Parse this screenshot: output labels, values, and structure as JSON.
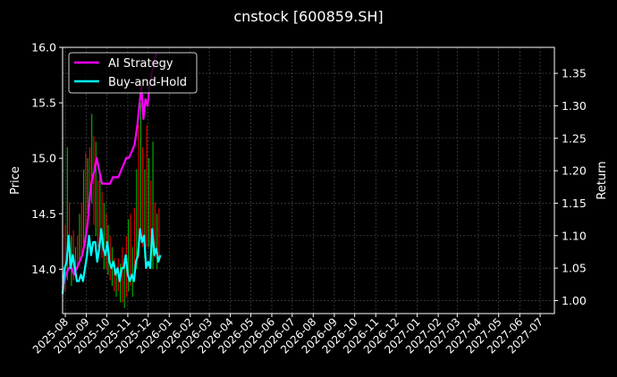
{
  "chart_data": {
    "type": "line",
    "title": "cnstock [600859.SH]",
    "ylabel_left": "Price",
    "ylabel_right": "Return",
    "xlim": [
      "2025-07-28",
      "2027-07-22"
    ],
    "ylim_left": [
      13.6,
      16.0
    ],
    "ylim_right": [
      0.98,
      1.39
    ],
    "yticks_left": [
      "14.0",
      "14.5",
      "15.0",
      "15.5",
      "16.0"
    ],
    "yticks_left_values": [
      14.0,
      14.5,
      15.0,
      15.5,
      16.0
    ],
    "yticks_right": [
      "1.00",
      "1.05",
      "1.10",
      "1.15",
      "1.20",
      "1.25",
      "1.30",
      "1.35"
    ],
    "yticks_right_values": [
      1.0,
      1.05,
      1.1,
      1.15,
      1.2,
      1.25,
      1.3,
      1.35
    ],
    "xticks": [
      "2025-08",
      "2025-09",
      "2025-10",
      "2025-11",
      "2025-12",
      "2026-01",
      "2026-02",
      "2026-03",
      "2026-04",
      "2026-05",
      "2026-06",
      "2026-07",
      "2026-08",
      "2026-09",
      "2026-10",
      "2026-11",
      "2026-12",
      "2027-01",
      "2027-02",
      "2027-03",
      "2027-04",
      "2027-05",
      "2027-06",
      "2027-07"
    ],
    "grid": true,
    "legend_position": "top-left",
    "colors": {
      "ai": "#ff00ff",
      "bh": "#00ffff",
      "up": "#00aa00",
      "down": "#dd0000",
      "grid": "#555555"
    },
    "series": [
      {
        "name": "AI Strategy",
        "axis": "right",
        "x": [
          "2025-07-28",
          "2025-08-02",
          "2025-08-06",
          "2025-08-10",
          "2025-08-14",
          "2025-08-18",
          "2025-08-22",
          "2025-08-26",
          "2025-08-30",
          "2025-09-03",
          "2025-09-07",
          "2025-09-10",
          "2025-09-13",
          "2025-09-16",
          "2025-09-20",
          "2025-09-24",
          "2025-09-28",
          "2025-10-02",
          "2025-10-06",
          "2025-10-10",
          "2025-10-14",
          "2025-10-18",
          "2025-10-22",
          "2025-10-26",
          "2025-10-30",
          "2025-11-03",
          "2025-11-07",
          "2025-11-11",
          "2025-11-15",
          "2025-11-18",
          "2025-11-21",
          "2025-11-24",
          "2025-11-27",
          "2025-11-30",
          "2025-12-03",
          "2025-12-06",
          "2025-12-09",
          "2025-12-12",
          "2025-12-15"
        ],
        "values": [
          1.02,
          1.04,
          1.05,
          1.05,
          1.04,
          1.05,
          1.06,
          1.07,
          1.09,
          1.12,
          1.17,
          1.19,
          1.2,
          1.22,
          1.2,
          1.18,
          1.18,
          1.18,
          1.18,
          1.19,
          1.19,
          1.19,
          1.2,
          1.21,
          1.22,
          1.22,
          1.23,
          1.24,
          1.27,
          1.3,
          1.33,
          1.28,
          1.31,
          1.3,
          1.33,
          1.35,
          1.36,
          1.38,
          1.38
        ]
      },
      {
        "name": "Buy-and-Hold",
        "axis": "right",
        "x": [
          "2025-07-28",
          "2025-07-31",
          "2025-08-03",
          "2025-08-06",
          "2025-08-09",
          "2025-08-12",
          "2025-08-15",
          "2025-08-18",
          "2025-08-21",
          "2025-08-24",
          "2025-08-27",
          "2025-08-30",
          "2025-09-02",
          "2025-09-05",
          "2025-09-08",
          "2025-09-11",
          "2025-09-14",
          "2025-09-17",
          "2025-09-20",
          "2025-09-23",
          "2025-09-26",
          "2025-09-29",
          "2025-10-02",
          "2025-10-05",
          "2025-10-08",
          "2025-10-11",
          "2025-10-14",
          "2025-10-17",
          "2025-10-20",
          "2025-10-23",
          "2025-10-26",
          "2025-10-29",
          "2025-11-01",
          "2025-11-04",
          "2025-11-07",
          "2025-11-10",
          "2025-11-13",
          "2025-11-16",
          "2025-11-19",
          "2025-11-22",
          "2025-11-25",
          "2025-11-28",
          "2025-12-01",
          "2025-12-04",
          "2025-12-07",
          "2025-12-10",
          "2025-12-13",
          "2025-12-16",
          "2025-12-19"
        ],
        "values": [
          1.01,
          1.05,
          1.06,
          1.1,
          1.05,
          1.07,
          1.05,
          1.03,
          1.03,
          1.04,
          1.03,
          1.05,
          1.07,
          1.1,
          1.07,
          1.09,
          1.09,
          1.06,
          1.08,
          1.11,
          1.08,
          1.07,
          1.09,
          1.06,
          1.05,
          1.06,
          1.04,
          1.05,
          1.03,
          1.05,
          1.05,
          1.07,
          1.04,
          1.03,
          1.04,
          1.03,
          1.06,
          1.07,
          1.11,
          1.09,
          1.1,
          1.05,
          1.06,
          1.05,
          1.11,
          1.07,
          1.08,
          1.06,
          1.07
        ]
      }
    ],
    "candles": [
      {
        "x": "2025-08-01",
        "low": 13.8,
        "high": 14.4
      },
      {
        "x": "2025-08-04",
        "low": 13.9,
        "high": 15.1
      },
      {
        "x": "2025-08-07",
        "low": 14.0,
        "high": 14.6
      },
      {
        "x": "2025-08-10",
        "low": 13.85,
        "high": 14.3
      },
      {
        "x": "2025-08-13",
        "low": 13.9,
        "high": 14.35
      },
      {
        "x": "2025-08-16",
        "low": 13.95,
        "high": 14.2
      },
      {
        "x": "2025-08-19",
        "low": 14.0,
        "high": 14.3
      },
      {
        "x": "2025-08-22",
        "low": 14.05,
        "high": 14.5
      },
      {
        "x": "2025-08-25",
        "low": 14.1,
        "high": 14.6
      },
      {
        "x": "2025-08-28",
        "low": 14.2,
        "high": 14.9
      },
      {
        "x": "2025-08-31",
        "low": 14.3,
        "high": 15.05
      },
      {
        "x": "2025-09-03",
        "low": 14.5,
        "high": 15.0
      },
      {
        "x": "2025-09-06",
        "low": 14.6,
        "high": 15.1
      },
      {
        "x": "2025-09-09",
        "low": 14.6,
        "high": 15.4
      },
      {
        "x": "2025-09-12",
        "low": 14.4,
        "high": 15.2
      },
      {
        "x": "2025-09-15",
        "low": 14.3,
        "high": 15.15
      },
      {
        "x": "2025-09-18",
        "low": 14.2,
        "high": 14.8
      },
      {
        "x": "2025-09-21",
        "low": 14.3,
        "high": 14.9
      },
      {
        "x": "2025-09-24",
        "low": 14.1,
        "high": 14.7
      },
      {
        "x": "2025-09-27",
        "low": 14.0,
        "high": 14.6
      },
      {
        "x": "2025-09-30",
        "low": 14.0,
        "high": 14.5
      },
      {
        "x": "2025-10-03",
        "low": 13.95,
        "high": 14.4
      },
      {
        "x": "2025-10-06",
        "low": 13.9,
        "high": 14.3
      },
      {
        "x": "2025-10-09",
        "low": 13.85,
        "high": 14.2
      },
      {
        "x": "2025-10-12",
        "low": 13.8,
        "high": 14.1
      },
      {
        "x": "2025-10-15",
        "low": 13.75,
        "high": 14.0
      },
      {
        "x": "2025-10-18",
        "low": 13.8,
        "high": 14.1
      },
      {
        "x": "2025-10-21",
        "low": 13.7,
        "high": 14.05
      },
      {
        "x": "2025-10-24",
        "low": 13.7,
        "high": 14.2
      },
      {
        "x": "2025-10-27",
        "low": 13.65,
        "high": 14.1
      },
      {
        "x": "2025-10-30",
        "low": 13.75,
        "high": 14.3
      },
      {
        "x": "2025-11-02",
        "low": 13.8,
        "high": 14.45
      },
      {
        "x": "2025-11-05",
        "low": 13.85,
        "high": 14.5
      },
      {
        "x": "2025-11-08",
        "low": 13.75,
        "high": 14.2
      },
      {
        "x": "2025-11-11",
        "low": 13.9,
        "high": 14.55
      },
      {
        "x": "2025-11-14",
        "low": 14.0,
        "high": 14.9
      },
      {
        "x": "2025-11-17",
        "low": 14.1,
        "high": 15.3
      },
      {
        "x": "2025-11-20",
        "low": 14.3,
        "high": 15.5
      },
      {
        "x": "2025-11-23",
        "low": 14.2,
        "high": 15.1
      },
      {
        "x": "2025-11-26",
        "low": 14.1,
        "high": 14.9
      },
      {
        "x": "2025-11-29",
        "low": 14.2,
        "high": 15.3
      },
      {
        "x": "2025-12-02",
        "low": 14.2,
        "high": 15.0
      },
      {
        "x": "2025-12-05",
        "low": 14.0,
        "high": 14.8
      },
      {
        "x": "2025-12-08",
        "low": 14.0,
        "high": 15.15
      },
      {
        "x": "2025-12-11",
        "low": 14.1,
        "high": 14.6
      },
      {
        "x": "2025-12-14",
        "low": 14.0,
        "high": 14.5
      },
      {
        "x": "2025-12-17",
        "low": 14.1,
        "high": 14.55
      }
    ]
  }
}
